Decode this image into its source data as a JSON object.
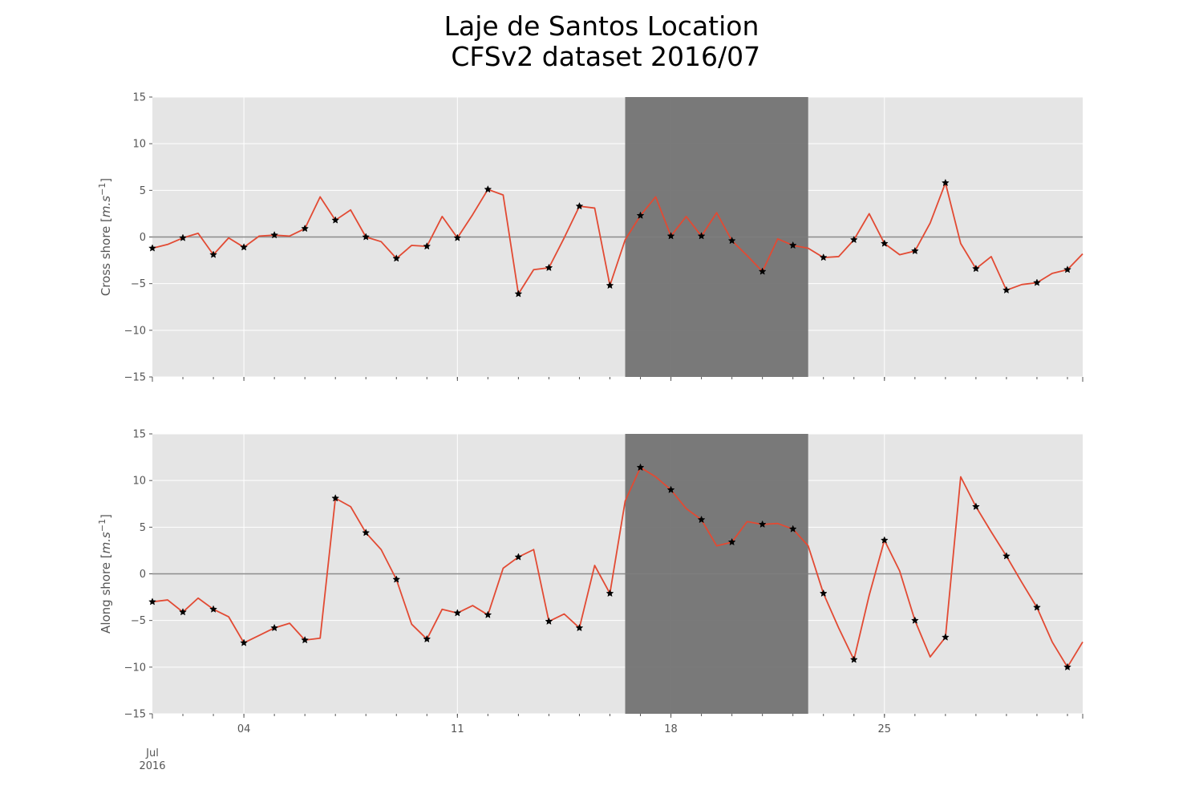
{
  "title_line1": "Laje de Santos Location",
  "title_line2": " CFSv2 dataset 2016/07",
  "colors": {
    "panel_bg": "#e5e5e5",
    "grid": "#ffffff",
    "shade": "#737373",
    "line": "#e24a33",
    "zero_line": "#7f7f7f",
    "marker": "#000000",
    "tick_text": "#555555"
  },
  "chart_data": [
    {
      "type": "line",
      "ylabel_prefix": "Cross shore [",
      "ylabel_math": "m.s",
      "ylabel_exp": "−1",
      "ylabel_suffix": "]",
      "ylim": [
        -15,
        15
      ],
      "yticks": [
        15,
        10,
        5,
        0,
        -5,
        -10,
        -15
      ],
      "ytick_labels": [
        "15",
        "10",
        "5",
        "0",
        "−5",
        "−10",
        "−15"
      ],
      "xlim_days": [
        1,
        31.5
      ],
      "xtick_labels": [
        {
          "day": 4,
          "label": "04"
        },
        {
          "day": 11,
          "label": "11"
        },
        {
          "day": 18,
          "label": "18"
        },
        {
          "day": 25,
          "label": "25"
        }
      ],
      "x_start_label_1": "Jul",
      "x_start_label_2": "2016",
      "shaded_span_days": [
        16.5,
        22.5
      ],
      "hline": 0,
      "grid": true,
      "x_days": [
        1,
        1.5,
        2,
        2.5,
        3,
        3.5,
        4,
        4.5,
        5,
        5.5,
        6,
        6.5,
        7,
        7.5,
        8,
        8.5,
        9,
        9.5,
        10,
        10.5,
        11,
        11.5,
        12,
        12.5,
        13,
        13.5,
        14,
        14.5,
        15,
        15.5,
        16,
        16.5,
        17,
        17.5,
        18,
        18.5,
        19,
        19.5,
        20,
        20.5,
        21,
        21.5,
        22,
        22.5,
        23,
        23.5,
        24,
        24.5,
        25,
        25.5,
        26,
        26.5,
        27,
        27.5,
        28,
        28.5,
        29,
        29.5,
        30,
        30.5,
        31,
        31.5
      ],
      "values": [
        -1.2,
        -0.8,
        -0.1,
        0.4,
        -1.9,
        -0.1,
        -1.1,
        0.1,
        0.2,
        0.1,
        0.9,
        4.3,
        1.8,
        2.9,
        0.0,
        -0.5,
        -2.3,
        -0.9,
        -1.0,
        2.2,
        -0.1,
        2.4,
        5.1,
        4.5,
        -6.1,
        -3.5,
        -3.3,
        -0.1,
        3.3,
        3.1,
        -5.2,
        -0.3,
        2.3,
        4.3,
        0.1,
        2.2,
        0.1,
        2.6,
        -0.4,
        -2.0,
        -3.7,
        -0.2,
        -0.9,
        -1.2,
        -2.2,
        -2.1,
        -0.3,
        2.5,
        -0.7,
        -1.9,
        -1.5,
        1.5,
        5.8,
        -0.7,
        -3.4,
        -2.1,
        -5.7,
        -5.1,
        -4.9,
        -3.9,
        -3.5,
        -1.8
      ],
      "marker_x_days": [
        1,
        2,
        3,
        4,
        5,
        6,
        7,
        8,
        9,
        10,
        11,
        12,
        13,
        14,
        15,
        16,
        17,
        18,
        19,
        20,
        21,
        22,
        23,
        24,
        25,
        26,
        27,
        28,
        29,
        30,
        31
      ],
      "marker_values": [
        -1.2,
        -0.1,
        -1.9,
        -1.1,
        0.2,
        0.9,
        1.8,
        0.0,
        -2.3,
        -1.0,
        -0.1,
        5.1,
        -6.1,
        -3.3,
        3.3,
        -5.2,
        2.3,
        0.1,
        0.1,
        -0.4,
        -3.7,
        -0.9,
        -2.2,
        -0.3,
        -0.7,
        -1.5,
        5.8,
        -3.4,
        -5.7,
        -4.9,
        -3.5
      ]
    },
    {
      "type": "line",
      "ylabel_prefix": "Along shore [",
      "ylabel_math": "m.s",
      "ylabel_exp": "−1",
      "ylabel_suffix": "]",
      "ylim": [
        -15,
        15
      ],
      "yticks": [
        15,
        10,
        5,
        0,
        -5,
        -10,
        -15
      ],
      "ytick_labels": [
        "15",
        "10",
        "5",
        "0",
        "−5",
        "−10",
        "−15"
      ],
      "xlim_days": [
        1,
        31.5
      ],
      "xtick_labels": [
        {
          "day": 4,
          "label": "04"
        },
        {
          "day": 11,
          "label": "11"
        },
        {
          "day": 18,
          "label": "18"
        },
        {
          "day": 25,
          "label": "25"
        }
      ],
      "x_start_label_1": "Jul",
      "x_start_label_2": "2016",
      "shaded_span_days": [
        16.5,
        22.5
      ],
      "hline": 0,
      "grid": true,
      "x_days": [
        1,
        1.5,
        2,
        2.5,
        3,
        3.5,
        4,
        4.5,
        5,
        5.5,
        6,
        6.5,
        7,
        7.5,
        8,
        8.5,
        9,
        9.5,
        10,
        10.5,
        11,
        11.5,
        12,
        12.5,
        13,
        13.5,
        14,
        14.5,
        15,
        15.5,
        16,
        16.5,
        17,
        17.5,
        18,
        18.5,
        19,
        19.5,
        20,
        20.5,
        21,
        21.5,
        22,
        22.5,
        23,
        23.5,
        24,
        24.5,
        25,
        25.5,
        26,
        26.5,
        27,
        27.5,
        28,
        28.5,
        29,
        29.5,
        30,
        30.5,
        31,
        31.5
      ],
      "values": [
        -3.0,
        -2.8,
        -4.1,
        -2.6,
        -3.8,
        -4.6,
        -7.4,
        -6.6,
        -5.8,
        -5.3,
        -7.1,
        -6.9,
        8.1,
        7.2,
        4.4,
        2.6,
        -0.6,
        -5.4,
        -7.0,
        -3.8,
        -4.2,
        -3.4,
        -4.4,
        0.6,
        1.8,
        2.6,
        -5.1,
        -4.3,
        -5.8,
        0.9,
        -2.1,
        7.8,
        11.4,
        10.4,
        9.0,
        7.0,
        5.8,
        3.0,
        3.4,
        5.6,
        5.3,
        5.4,
        4.8,
        3.0,
        -2.1,
        -5.8,
        -9.2,
        -2.3,
        3.6,
        0.3,
        -5.0,
        -8.9,
        -6.8,
        10.4,
        7.2,
        4.5,
        1.9,
        -0.9,
        -3.6,
        -7.3,
        -10.0,
        -7.3
      ],
      "marker_x_days": [
        1,
        2,
        3,
        4,
        5,
        6,
        7,
        8,
        9,
        10,
        11,
        12,
        13,
        14,
        15,
        16,
        17,
        18,
        19,
        20,
        21,
        22,
        23,
        24,
        25,
        26,
        27,
        28,
        29,
        30,
        31
      ],
      "marker_values": [
        -3.0,
        -4.1,
        -3.8,
        -7.4,
        -5.8,
        -7.1,
        8.1,
        4.4,
        -0.6,
        -7.0,
        -4.2,
        -4.4,
        1.8,
        -5.1,
        -5.8,
        -2.1,
        11.4,
        9.0,
        5.8,
        3.4,
        5.3,
        4.8,
        -2.1,
        -9.2,
        3.6,
        -5.0,
        -6.8,
        7.2,
        1.9,
        -3.6,
        -10.0
      ]
    }
  ]
}
